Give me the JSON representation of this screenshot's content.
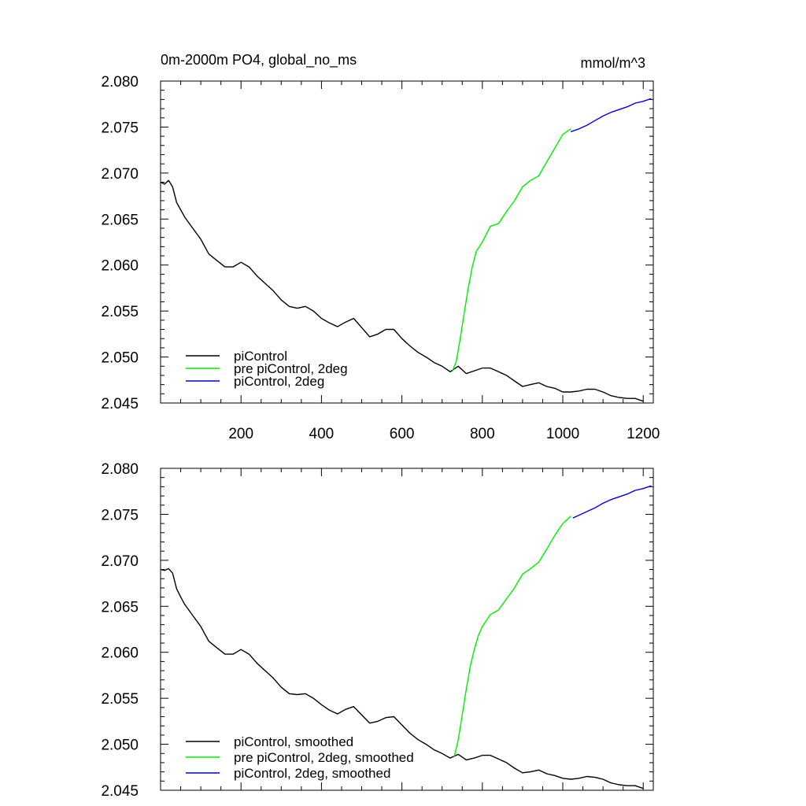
{
  "chart_data": [
    {
      "type": "line",
      "title": "0m-2000m PO4, global_no_ms",
      "units": "mmol/m^3",
      "xlim": [
        0,
        1225
      ],
      "ylim": [
        2.045,
        2.08
      ],
      "x_ticks": [
        200,
        400,
        600,
        800,
        1000,
        1200
      ],
      "y_ticks": [
        "2.045",
        "2.050",
        "2.055",
        "2.060",
        "2.065",
        "2.070",
        "2.075",
        "2.080"
      ],
      "show_x_labels": true,
      "legend_position": "bottom-left",
      "series": [
        {
          "name": "piControl",
          "color": "#000000",
          "x": [
            0,
            10,
            20,
            30,
            40,
            50,
            60,
            80,
            100,
            120,
            140,
            160,
            180,
            200,
            220,
            240,
            260,
            280,
            300,
            320,
            340,
            360,
            380,
            400,
            420,
            440,
            460,
            480,
            500,
            520,
            540,
            560,
            580,
            600,
            620,
            640,
            660,
            680,
            700,
            720,
            740,
            760,
            780,
            800,
            820,
            840,
            860,
            880,
            900,
            920,
            940,
            960,
            980,
            1000,
            1020,
            1040,
            1060,
            1080,
            1100,
            1120,
            1140,
            1160,
            1180,
            1200
          ],
          "y": [
            2.069,
            2.0688,
            2.0692,
            2.0685,
            2.0668,
            2.066,
            2.0652,
            2.064,
            2.0628,
            2.0612,
            2.0605,
            2.0598,
            2.0598,
            2.0603,
            2.0598,
            2.0588,
            2.058,
            2.0572,
            2.0562,
            2.0555,
            2.0553,
            2.0555,
            2.055,
            2.0542,
            2.0537,
            2.0533,
            2.0538,
            2.0542,
            2.0532,
            2.0522,
            2.0525,
            2.053,
            2.053,
            2.052,
            2.0512,
            2.0505,
            2.05,
            2.0494,
            2.049,
            2.0484,
            2.049,
            2.0482,
            2.0485,
            2.0488,
            2.0488,
            2.0484,
            2.048,
            2.0474,
            2.0468,
            2.047,
            2.0472,
            2.0468,
            2.0466,
            2.0462,
            2.0462,
            2.0463,
            2.0465,
            2.0465,
            2.0462,
            2.0458,
            2.0456,
            2.0455,
            2.0455,
            2.0452
          ]
        },
        {
          "name": "pre piControl, 2deg",
          "color": "#00ee00",
          "x": [
            725,
            735,
            745,
            755,
            765,
            775,
            785,
            800,
            820,
            840,
            860,
            880,
            900,
            920,
            940,
            960,
            980,
            1000,
            1020
          ],
          "y": [
            2.0484,
            2.0495,
            2.052,
            2.0548,
            2.0575,
            2.0598,
            2.0615,
            2.0625,
            2.0642,
            2.0645,
            2.0658,
            2.067,
            2.0685,
            2.0692,
            2.0697,
            2.0712,
            2.0727,
            2.0742,
            2.0748
          ]
        },
        {
          "name": "piControl, 2deg",
          "color": "#0000dd",
          "x": [
            1020,
            1040,
            1060,
            1080,
            1100,
            1120,
            1140,
            1160,
            1180,
            1200,
            1220
          ],
          "y": [
            2.0745,
            2.0748,
            2.0752,
            2.0757,
            2.0762,
            2.0766,
            2.0769,
            2.0772,
            2.0776,
            2.0778,
            2.0781
          ]
        }
      ]
    },
    {
      "type": "line",
      "xlim": [
        0,
        1225
      ],
      "ylim": [
        2.045,
        2.08
      ],
      "x_ticks": [
        200,
        400,
        600,
        800,
        1000,
        1200
      ],
      "y_ticks": [
        "2.045",
        "2.050",
        "2.055",
        "2.060",
        "2.065",
        "2.070",
        "2.075",
        "2.080"
      ],
      "show_x_labels": false,
      "legend_position": "bottom-left",
      "series": [
        {
          "name": "piControl, smoothed",
          "color": "#000000",
          "x": [
            0,
            10,
            20,
            30,
            40,
            50,
            60,
            80,
            100,
            120,
            140,
            160,
            180,
            200,
            220,
            240,
            260,
            280,
            300,
            320,
            340,
            360,
            380,
            400,
            420,
            440,
            460,
            480,
            500,
            520,
            540,
            560,
            580,
            600,
            620,
            640,
            660,
            680,
            700,
            720,
            740,
            760,
            780,
            800,
            820,
            840,
            860,
            880,
            900,
            920,
            940,
            960,
            980,
            1000,
            1020,
            1040,
            1060,
            1080,
            1100,
            1120,
            1140,
            1160,
            1180,
            1200
          ],
          "y": [
            2.069,
            2.0689,
            2.0691,
            2.0686,
            2.0669,
            2.066,
            2.0652,
            2.064,
            2.0628,
            2.0612,
            2.0605,
            2.0598,
            2.0598,
            2.0603,
            2.0598,
            2.0588,
            2.058,
            2.0572,
            2.0562,
            2.0555,
            2.0554,
            2.0555,
            2.055,
            2.0543,
            2.0537,
            2.0533,
            2.0538,
            2.0541,
            2.0532,
            2.0523,
            2.0525,
            2.0529,
            2.053,
            2.0521,
            2.0512,
            2.0505,
            2.05,
            2.0494,
            2.049,
            2.0485,
            2.0489,
            2.0483,
            2.0485,
            2.0488,
            2.0488,
            2.0484,
            2.048,
            2.0474,
            2.0469,
            2.047,
            2.0472,
            2.0468,
            2.0466,
            2.0463,
            2.0462,
            2.0463,
            2.0465,
            2.0464,
            2.0462,
            2.0458,
            2.0456,
            2.0455,
            2.0455,
            2.0452
          ]
        },
        {
          "name": "pre piControl, 2deg, smoothed",
          "color": "#00ee00",
          "x": [
            730,
            740,
            750,
            760,
            770,
            780,
            790,
            800,
            820,
            840,
            860,
            880,
            900,
            920,
            940,
            960,
            980,
            1000,
            1020
          ],
          "y": [
            2.0486,
            2.0505,
            2.0532,
            2.056,
            2.0585,
            2.0603,
            2.0618,
            2.0628,
            2.0641,
            2.0646,
            2.0658,
            2.067,
            2.0685,
            2.0691,
            2.0698,
            2.0712,
            2.0727,
            2.074,
            2.0748
          ]
        },
        {
          "name": "piControl, 2deg, smoothed",
          "color": "#0000dd",
          "x": [
            1025,
            1040,
            1060,
            1080,
            1100,
            1120,
            1140,
            1160,
            1180,
            1200,
            1220
          ],
          "y": [
            2.0746,
            2.0749,
            2.0753,
            2.0757,
            2.0762,
            2.0766,
            2.0769,
            2.0772,
            2.0776,
            2.0778,
            2.0781
          ]
        }
      ]
    }
  ]
}
